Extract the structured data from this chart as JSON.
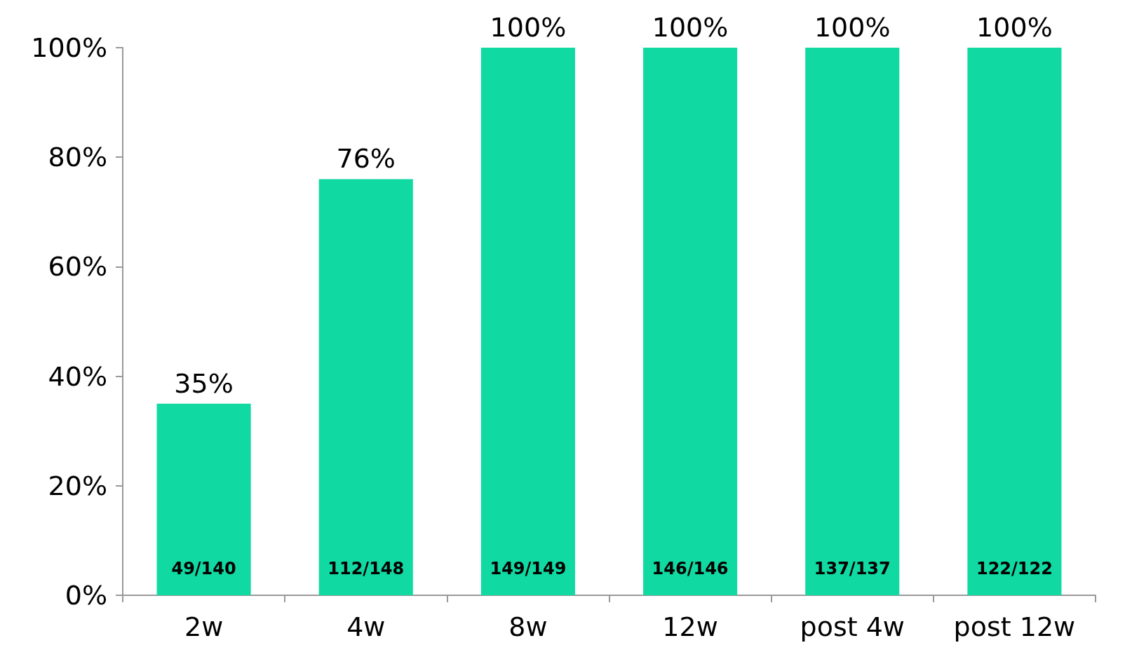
{
  "chart_data": {
    "type": "bar",
    "categories": [
      "2w",
      "4w",
      "8w",
      "12w",
      "post 4w",
      "post 12w"
    ],
    "values": [
      35,
      76,
      100,
      100,
      100,
      100
    ],
    "value_labels": [
      "35%",
      "76%",
      "100%",
      "100%",
      "100%",
      "100%"
    ],
    "color": "#10d9a2",
    "ylim": [
      0,
      100
    ],
    "yticks": [
      {
        "value": 0,
        "label": "0%"
      },
      {
        "value": 20,
        "label": "20%"
      },
      {
        "value": 40,
        "label": "40%"
      },
      {
        "value": 60,
        "label": "60%"
      },
      {
        "value": 80,
        "label": "80%"
      },
      {
        "value": 100,
        "label": "100%"
      }
    ],
    "grid": false,
    "annotations": [
      "49/140",
      "112/148",
      "149/149",
      "146/146",
      "137/137",
      "122/122"
    ]
  }
}
